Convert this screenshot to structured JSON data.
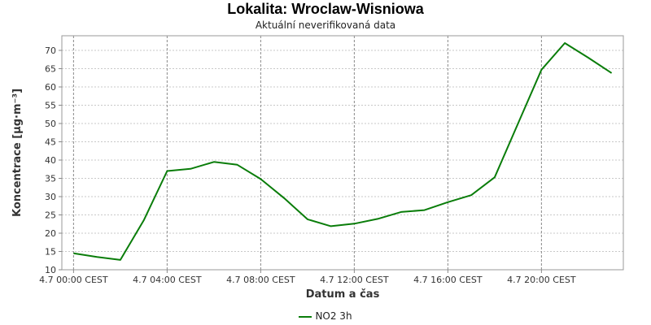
{
  "chart_data": {
    "type": "line",
    "title": "Lokalita: Wroclaw-Wisniowa",
    "subtitle": "Aktuální neverifikovaná data",
    "xlabel": "Datum a čas",
    "ylabel": "Koncentrace [µg·m⁻³]",
    "x_ticks": [
      "4.7 00:00 CEST",
      "4.7 04:00 CEST",
      "4.7 08:00 CEST",
      "4.7 12:00 CEST",
      "4.7 16:00 CEST",
      "4.7 20:00 CEST"
    ],
    "x_tick_hours": [
      0,
      4,
      8,
      12,
      16,
      20
    ],
    "xlim_hours": [
      -0.5,
      23.5
    ],
    "ylim": [
      10,
      74
    ],
    "y_ticks": [
      10,
      15,
      20,
      25,
      30,
      35,
      40,
      45,
      50,
      55,
      60,
      65,
      70
    ],
    "grid": true,
    "legend_position": "bottom-center",
    "series": [
      {
        "name": "NO2 3h",
        "color": "#0a7d0a",
        "x_hours": [
          0,
          1,
          2,
          3,
          4,
          5,
          6,
          7,
          8,
          9,
          10,
          11,
          12,
          13,
          14,
          15,
          16,
          17,
          18,
          19,
          20,
          21,
          22,
          23
        ],
        "values": [
          14.5,
          13.5,
          12.7,
          23.5,
          37.0,
          37.6,
          39.5,
          38.7,
          34.8,
          29.6,
          23.8,
          21.9,
          22.6,
          23.9,
          25.8,
          26.3,
          28.5,
          30.4,
          35.3,
          50.0,
          64.7,
          72.0,
          68.0,
          63.8
        ]
      }
    ]
  }
}
